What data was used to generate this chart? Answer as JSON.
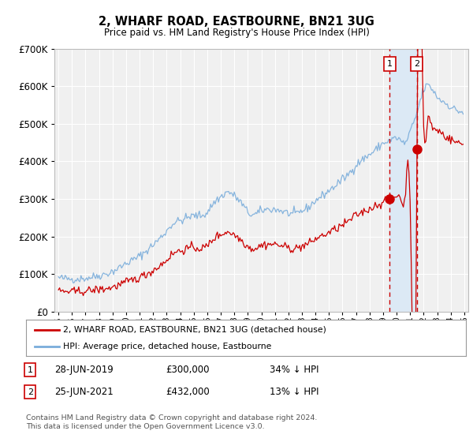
{
  "title": "2, WHARF ROAD, EASTBOURNE, BN21 3UG",
  "subtitle": "Price paid vs. HM Land Registry's House Price Index (HPI)",
  "legend_label_red": "2, WHARF ROAD, EASTBOURNE, BN21 3UG (detached house)",
  "legend_label_blue": "HPI: Average price, detached house, Eastbourne",
  "footer": "Contains HM Land Registry data © Crown copyright and database right 2024.\nThis data is licensed under the Open Government Licence v3.0.",
  "transaction1_date": "28-JUN-2019",
  "transaction1_price": "£300,000",
  "transaction1_hpi": "34% ↓ HPI",
  "transaction2_date": "25-JUN-2021",
  "transaction2_price": "£432,000",
  "transaction2_hpi": "13% ↓ HPI",
  "vline1_x": 2019.5,
  "vline2_x": 2021.5,
  "marker1_x": 2019.5,
  "marker1_y": 300000,
  "marker2_x": 2021.5,
  "marker2_y": 432000,
  "ylim": [
    0,
    700000
  ],
  "xlim_left": 1994.7,
  "xlim_right": 2025.3,
  "background_color": "#ffffff",
  "plot_bg_color": "#f0f0f0",
  "grid_color": "#ffffff",
  "red_color": "#cc0000",
  "blue_color": "#7aaddb",
  "shade_color": "#dce9f5"
}
